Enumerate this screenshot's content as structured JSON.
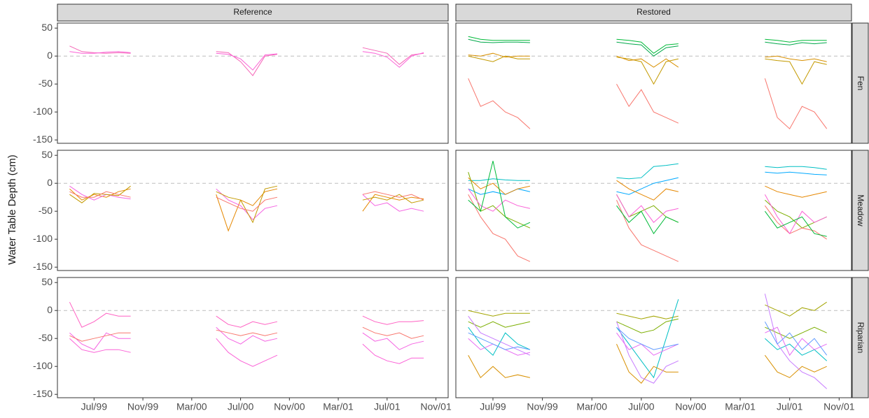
{
  "ylabel": "Water Table Depth (cm)",
  "columns": [
    "Reference",
    "Restored"
  ],
  "rows": [
    "Fen",
    "Meadow",
    "Riparian"
  ],
  "chart_data": [
    {
      "type": "line",
      "x": [
        "1999-05",
        "1999-06",
        "1999-07",
        "1999-08",
        "1999-09",
        "1999-10",
        "2000-01",
        "2000-05",
        "2000-06",
        "2000-07",
        "2000-08",
        "2000-09",
        "2000-10",
        "2001-01",
        "2001-05",
        "2001-06",
        "2001-07",
        "2001-08",
        "2001-09",
        "2001-10"
      ],
      "xlim": [
        "1999-04",
        "2001-12"
      ],
      "ylim": [
        -156,
        59
      ],
      "hline": 0,
      "yticks": [
        -150,
        -100,
        -50,
        0,
        50
      ],
      "series": [
        {
          "color": "#f564b6",
          "values": [
            18,
            8,
            6,
            5,
            6,
            5,
            null,
            8,
            6,
            -10,
            -35,
            0,
            3,
            null,
            15,
            10,
            5,
            -15,
            2,
            5
          ]
        },
        {
          "color": "#fb61d7",
          "values": [
            8,
            5,
            5,
            7,
            8,
            6,
            null,
            5,
            3,
            -5,
            -25,
            2,
            4,
            null,
            8,
            5,
            -2,
            -20,
            0,
            6
          ]
        }
      ]
    },
    {
      "type": "line",
      "x": [
        "1999-05",
        "1999-06",
        "1999-07",
        "1999-08",
        "1999-09",
        "1999-10",
        "2000-01",
        "2000-05",
        "2000-06",
        "2000-07",
        "2000-08",
        "2000-09",
        "2000-10",
        "2001-01",
        "2001-05",
        "2001-06",
        "2001-07",
        "2001-08",
        "2001-09",
        "2001-10"
      ],
      "xlim": [
        "1999-04",
        "2001-12"
      ],
      "ylim": [
        -156,
        59
      ],
      "hline": 0,
      "series": [
        {
          "color": "#00ba38",
          "values": [
            35,
            30,
            28,
            28,
            28,
            28,
            null,
            30,
            28,
            25,
            5,
            20,
            22,
            null,
            30,
            28,
            25,
            28,
            28,
            28
          ]
        },
        {
          "color": "#00a84a",
          "values": [
            30,
            25,
            24,
            25,
            25,
            24,
            null,
            25,
            22,
            20,
            0,
            15,
            18,
            null,
            25,
            22,
            20,
            24,
            22,
            24
          ]
        },
        {
          "color": "#c49a00",
          "values": [
            0,
            -5,
            -10,
            0,
            -5,
            -5,
            null,
            -2,
            -5,
            -10,
            -50,
            -10,
            -5,
            null,
            -5,
            -8,
            -10,
            -50,
            -10,
            -15
          ]
        },
        {
          "color": "#d89000",
          "values": [
            2,
            0,
            5,
            -2,
            0,
            0,
            null,
            0,
            -8,
            -5,
            -20,
            -5,
            -20,
            null,
            -2,
            0,
            -5,
            -8,
            -5,
            -10
          ]
        },
        {
          "color": "#f8766d",
          "values": [
            -40,
            -90,
            -80,
            -100,
            -110,
            -130,
            null,
            -50,
            -90,
            -60,
            -100,
            -110,
            -120,
            null,
            -40,
            -110,
            -130,
            -90,
            -100,
            -130
          ]
        }
      ]
    },
    {
      "type": "line",
      "x": [
        "1999-05",
        "1999-06",
        "1999-07",
        "1999-08",
        "1999-09",
        "1999-10",
        "2000-01",
        "2000-05",
        "2000-06",
        "2000-07",
        "2000-08",
        "2000-09",
        "2000-10",
        "2001-01",
        "2001-05",
        "2001-06",
        "2001-07",
        "2001-08",
        "2001-09",
        "2001-10"
      ],
      "xlim": [
        "1999-04",
        "2001-12"
      ],
      "ylim": [
        -156,
        59
      ],
      "hline": 0,
      "yticks": [
        -150,
        -100,
        -50,
        0,
        50
      ],
      "series": [
        {
          "color": "#e58700",
          "values": [
            -10,
            -30,
            -20,
            -25,
            -15,
            -10,
            null,
            -20,
            -85,
            -30,
            -40,
            -15,
            -10,
            null,
            -50,
            -20,
            -25,
            -30,
            -25,
            -28
          ]
        },
        {
          "color": "#f564e3",
          "values": [
            -5,
            -20,
            -30,
            -20,
            -25,
            -28,
            null,
            -10,
            -30,
            -40,
            -65,
            -45,
            -40,
            null,
            -20,
            -40,
            -35,
            -50,
            -45,
            -50
          ]
        },
        {
          "color": "#c49a00",
          "values": [
            -20,
            -35,
            -18,
            -20,
            -22,
            -5,
            null,
            -15,
            -25,
            -30,
            -70,
            -10,
            -5,
            null,
            -30,
            -25,
            -30,
            -20,
            -35,
            -30
          ]
        },
        {
          "color": "#f8766d",
          "values": [
            -15,
            -25,
            -25,
            -15,
            -20,
            -25,
            null,
            -25,
            -35,
            -45,
            -50,
            -30,
            -25,
            null,
            -20,
            -15,
            -20,
            -25,
            -20,
            -30
          ]
        }
      ]
    },
    {
      "type": "line",
      "x": [
        "1999-05",
        "1999-06",
        "1999-07",
        "1999-08",
        "1999-09",
        "1999-10",
        "2000-01",
        "2000-05",
        "2000-06",
        "2000-07",
        "2000-08",
        "2000-09",
        "2000-10",
        "2001-01",
        "2001-05",
        "2001-06",
        "2001-07",
        "2001-08",
        "2001-09",
        "2001-10"
      ],
      "xlim": [
        "1999-04",
        "2001-12"
      ],
      "ylim": [
        -156,
        59
      ],
      "hline": 0,
      "series": [
        {
          "color": "#00bfc4",
          "values": [
            5,
            5,
            8,
            6,
            5,
            5,
            null,
            10,
            8,
            10,
            30,
            32,
            35,
            null,
            30,
            28,
            30,
            30,
            28,
            25
          ]
        },
        {
          "color": "#00a9ff",
          "values": [
            -10,
            -20,
            -15,
            -20,
            -10,
            -15,
            null,
            -15,
            -20,
            -10,
            0,
            5,
            10,
            null,
            20,
            18,
            20,
            18,
            16,
            15
          ]
        },
        {
          "color": "#7cae00",
          "values": [
            20,
            -50,
            -40,
            -60,
            -70,
            -80,
            null,
            -20,
            -60,
            -50,
            -40,
            -60,
            -70,
            null,
            -30,
            -50,
            -60,
            -80,
            -70,
            -60
          ]
        },
        {
          "color": "#f8766d",
          "values": [
            -20,
            -60,
            -90,
            -100,
            -130,
            -140,
            null,
            -30,
            -80,
            -110,
            -120,
            -130,
            -140,
            null,
            -40,
            -70,
            -90,
            -80,
            -85,
            -100
          ]
        },
        {
          "color": "#fb61d7",
          "values": [
            -10,
            -40,
            -50,
            -30,
            -40,
            -45,
            null,
            -20,
            -60,
            -40,
            -70,
            -50,
            -45,
            null,
            -20,
            -60,
            -90,
            -50,
            -70,
            -60
          ]
        },
        {
          "color": "#e58700",
          "values": [
            10,
            -10,
            0,
            -20,
            -10,
            -5,
            null,
            5,
            -10,
            -20,
            -30,
            -10,
            -15,
            null,
            -5,
            -15,
            -20,
            -25,
            -20,
            -15
          ]
        },
        {
          "color": "#00ba38",
          "values": [
            -30,
            -50,
            40,
            -60,
            -80,
            -70,
            null,
            -40,
            -70,
            -50,
            -90,
            -60,
            -70,
            null,
            -50,
            -80,
            -70,
            -60,
            -90,
            -95
          ]
        }
      ]
    },
    {
      "type": "line",
      "x": [
        "1999-05",
        "1999-06",
        "1999-07",
        "1999-08",
        "1999-09",
        "1999-10",
        "2000-01",
        "2000-05",
        "2000-06",
        "2000-07",
        "2000-08",
        "2000-09",
        "2000-10",
        "2001-01",
        "2001-05",
        "2001-06",
        "2001-07",
        "2001-08",
        "2001-09",
        "2001-10"
      ],
      "xlim": [
        "1999-04",
        "2001-12"
      ],
      "ylim": [
        -156,
        59
      ],
      "hline": 0,
      "yticks": [
        -150,
        -100,
        -50,
        0,
        50
      ],
      "xticks": [
        {
          "value": "1999-07",
          "label": "Jul/99"
        },
        {
          "value": "1999-11",
          "label": "Nov/99"
        },
        {
          "value": "2000-03",
          "label": "Mar/00"
        },
        {
          "value": "2000-07",
          "label": "Jul/00"
        },
        {
          "value": "2000-11",
          "label": "Nov/00"
        },
        {
          "value": "2001-03",
          "label": "Mar/01"
        },
        {
          "value": "2001-07",
          "label": "Jul/01"
        },
        {
          "value": "2001-11",
          "label": "Nov/01"
        }
      ],
      "series": [
        {
          "color": "#ff61c3",
          "values": [
            15,
            -30,
            -20,
            -5,
            -10,
            -10,
            null,
            -10,
            -25,
            -30,
            -20,
            -25,
            -20,
            null,
            -10,
            -20,
            -25,
            -20,
            -20,
            -18
          ]
        },
        {
          "color": "#f564e3",
          "values": [
            -40,
            -60,
            -70,
            -40,
            -50,
            -50,
            null,
            -30,
            -50,
            -60,
            -45,
            -55,
            -50,
            null,
            -40,
            -55,
            -50,
            -70,
            -60,
            -55
          ]
        },
        {
          "color": "#f8766d",
          "values": [
            -45,
            -55,
            -50,
            -45,
            -40,
            -40,
            null,
            -35,
            -40,
            -45,
            -40,
            -45,
            -40,
            null,
            -30,
            -40,
            -45,
            -40,
            -50,
            -45
          ]
        },
        {
          "color": "#fb61d7",
          "values": [
            -50,
            -70,
            -75,
            -70,
            -70,
            -75,
            null,
            -50,
            -75,
            -90,
            -100,
            -90,
            -80,
            null,
            -60,
            -80,
            -90,
            -95,
            -85,
            -85
          ]
        }
      ]
    },
    {
      "type": "line",
      "x": [
        "1999-05",
        "1999-06",
        "1999-07",
        "1999-08",
        "1999-09",
        "1999-10",
        "2000-01",
        "2000-05",
        "2000-06",
        "2000-07",
        "2000-08",
        "2000-09",
        "2000-10",
        "2001-01",
        "2001-05",
        "2001-06",
        "2001-07",
        "2001-08",
        "2001-09",
        "2001-10"
      ],
      "xlim": [
        "1999-04",
        "2001-12"
      ],
      "ylim": [
        -156,
        59
      ],
      "hline": 0,
      "xticks": [
        {
          "value": "1999-07",
          "label": "Jul/99"
        },
        {
          "value": "1999-11",
          "label": "Nov/99"
        },
        {
          "value": "2000-03",
          "label": "Mar/00"
        },
        {
          "value": "2000-07",
          "label": "Jul/00"
        },
        {
          "value": "2000-11",
          "label": "Nov/00"
        },
        {
          "value": "2001-03",
          "label": "Mar/01"
        },
        {
          "value": "2001-07",
          "label": "Jul/01"
        },
        {
          "value": "2001-11",
          "label": "Nov/01"
        }
      ],
      "series": [
        {
          "color": "#a3a500",
          "values": [
            0,
            -5,
            -10,
            -5,
            -5,
            -5,
            null,
            -5,
            -10,
            -15,
            -10,
            -15,
            -10,
            null,
            10,
            0,
            -10,
            5,
            0,
            15
          ]
        },
        {
          "color": "#7cae00",
          "values": [
            -20,
            -30,
            -20,
            -30,
            -25,
            -20,
            null,
            -20,
            -30,
            -40,
            -35,
            -20,
            -15,
            null,
            -30,
            -40,
            -50,
            -40,
            -30,
            -40
          ]
        },
        {
          "color": "#00bfc4",
          "values": [
            -30,
            -60,
            -80,
            -40,
            -60,
            -70,
            null,
            -30,
            -60,
            -90,
            -120,
            -50,
            20,
            null,
            -50,
            -70,
            -60,
            -80,
            -70,
            -90
          ]
        },
        {
          "color": "#d89000",
          "values": [
            -80,
            -120,
            -100,
            -120,
            -115,
            -120,
            null,
            -60,
            -110,
            -130,
            -100,
            -110,
            -110,
            null,
            -80,
            -110,
            -120,
            -100,
            -110,
            -100
          ]
        },
        {
          "color": "#c77cff",
          "values": [
            -10,
            -40,
            -50,
            -60,
            -70,
            -80,
            null,
            -20,
            -80,
            -120,
            -130,
            -100,
            -90,
            null,
            30,
            -60,
            -90,
            -110,
            -120,
            -140
          ]
        },
        {
          "color": "#e76bf3",
          "values": [
            -50,
            -70,
            -60,
            -70,
            -80,
            -75,
            null,
            -40,
            -70,
            -60,
            -80,
            -70,
            -60,
            null,
            -40,
            -30,
            -80,
            -50,
            -70,
            -60
          ]
        },
        {
          "color": "#619cff",
          "values": [
            -40,
            -50,
            -60,
            -70,
            -65,
            -70,
            null,
            -30,
            -50,
            -60,
            -70,
            -65,
            -60,
            null,
            -20,
            -60,
            -40,
            -70,
            -50,
            -80
          ]
        }
      ]
    }
  ]
}
